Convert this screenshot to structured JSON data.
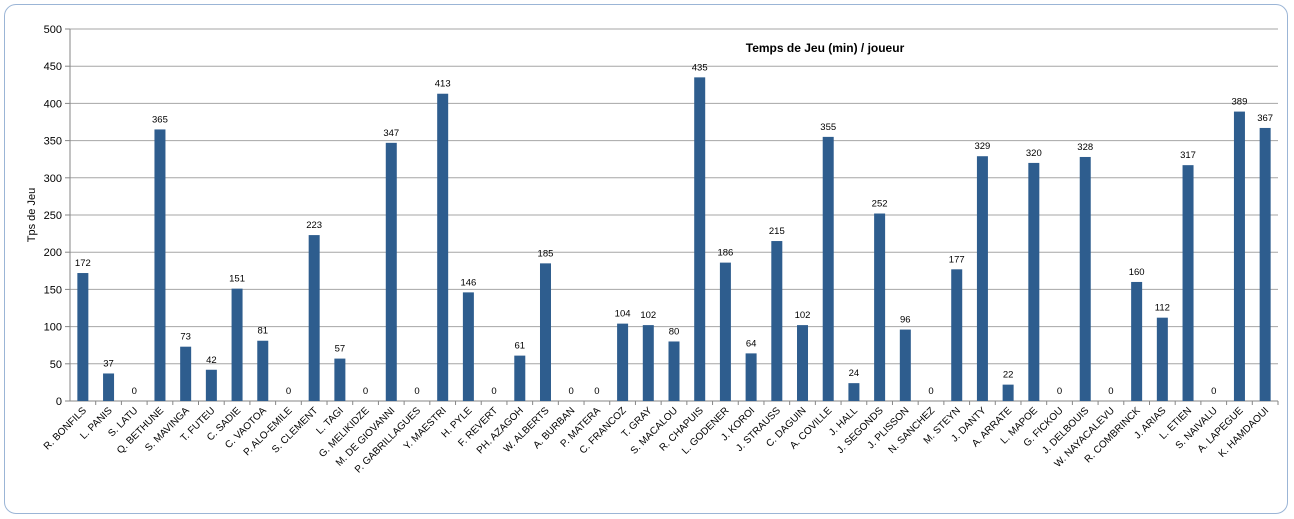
{
  "chart_data": {
    "type": "bar",
    "title": "Temps de Jeu (min) / joueur",
    "xlabel": "",
    "ylabel": "Tps de Jeu",
    "ylim": [
      0,
      500
    ],
    "yticks": [
      0,
      50,
      100,
      150,
      200,
      250,
      300,
      350,
      400,
      450,
      500
    ],
    "grid": true,
    "legend": "none",
    "bar_color": "#2e5d8e",
    "categories": [
      "R. BONFILS",
      "L. PANIS",
      "S. LATU",
      "Q. BETHUNE",
      "S. MAVINGA",
      "T. FUTEU",
      "C. SADIE",
      "C. VAOTOA",
      "P. ALO-EMILE",
      "S. CLEMENT",
      "L. TAGI",
      "G. MELIKIDZE",
      "M. DE GIOVANNI",
      "P. GABRILLAGUES",
      "Y. MAESTRI",
      "H. PYLE",
      "F. REVERT",
      "PH. AZAGOH",
      "W. ALBERTS",
      "A. BURBAN",
      "P. MATERA",
      "C. FRANCOZ",
      "T. GRAY",
      "S. MACALOU",
      "R. CHAPUIS",
      "L. GODENER",
      "J. KOROI",
      "J. STRAUSS",
      "C. DAGUIN",
      "A. COVILLE",
      "J. HALL",
      "J. SEGONDS",
      "J. PLISSON",
      "N. SANCHEZ",
      "M. STEYN",
      "J. DANTY",
      "A. ARRATE",
      "L. MAPOE",
      "G. FICKOU",
      "J. DELBOUIS",
      "W. NAYACALEVU",
      "R. COMBRINCK",
      "J. ARIAS",
      "L. ETIEN",
      "S. NAIVALU",
      "A. LAPEGUE",
      "K. HAMDAOUI"
    ],
    "values": [
      172,
      37,
      0,
      365,
      73,
      42,
      151,
      81,
      0,
      223,
      57,
      0,
      347,
      0,
      413,
      146,
      0,
      61,
      185,
      0,
      0,
      104,
      102,
      80,
      435,
      186,
      64,
      215,
      102,
      355,
      24,
      252,
      96,
      0,
      177,
      329,
      22,
      320,
      0,
      328,
      0,
      160,
      112,
      317,
      0,
      389,
      367
    ]
  }
}
